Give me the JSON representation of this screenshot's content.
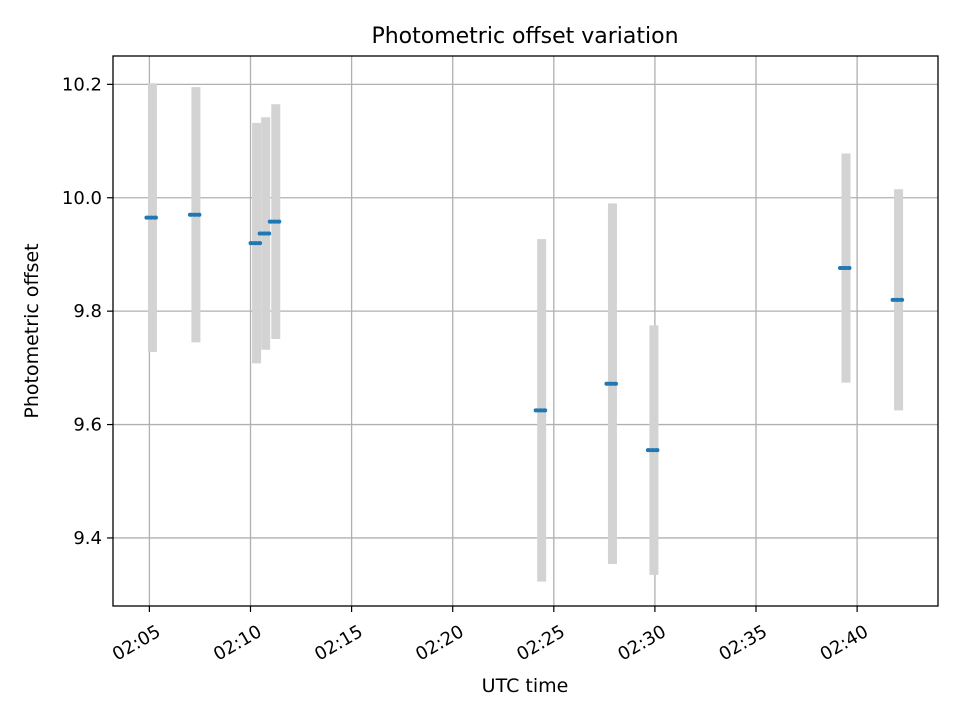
{
  "chart_data": {
    "type": "scatter",
    "title": "Photometric offset variation",
    "xlabel": "UTC time",
    "ylabel": "Photometric offset",
    "grid": true,
    "legend": "none",
    "x_unit": "minutes of hour 02 UTC",
    "xlim": [
      3.2,
      44.0
    ],
    "ylim": [
      9.28,
      10.25
    ],
    "x_ticks": [
      {
        "value": 5,
        "label": "02:05"
      },
      {
        "value": 10,
        "label": "02:10"
      },
      {
        "value": 15,
        "label": "02:15"
      },
      {
        "value": 20,
        "label": "02:20"
      },
      {
        "value": 25,
        "label": "02:25"
      },
      {
        "value": 30,
        "label": "02:30"
      },
      {
        "value": 35,
        "label": "02:35"
      },
      {
        "value": 40,
        "label": "02:40"
      }
    ],
    "y_ticks": [
      {
        "value": 9.4,
        "label": "9.4"
      },
      {
        "value": 9.6,
        "label": "9.6"
      },
      {
        "value": 9.8,
        "label": "9.8"
      },
      {
        "value": 10.0,
        "label": "10.0"
      },
      {
        "value": 10.2,
        "label": "10.2"
      }
    ],
    "colors": {
      "point": "#1f77b4",
      "errorbar": "#d3d3d3",
      "grid": "#b0b0b0"
    },
    "points": [
      {
        "x": 5.15,
        "y": 9.965,
        "yerr": 0.237
      },
      {
        "x": 7.3,
        "y": 9.97,
        "yerr": 0.225
      },
      {
        "x": 10.3,
        "y": 9.92,
        "yerr": 0.212
      },
      {
        "x": 10.75,
        "y": 9.937,
        "yerr": 0.205
      },
      {
        "x": 11.25,
        "y": 9.958,
        "yerr": 0.207
      },
      {
        "x": 24.4,
        "y": 9.625,
        "yerr": 0.302
      },
      {
        "x": 27.9,
        "y": 9.672,
        "yerr": 0.318
      },
      {
        "x": 29.95,
        "y": 9.555,
        "yerr": 0.22
      },
      {
        "x": 39.45,
        "y": 9.876,
        "yerr": 0.202
      },
      {
        "x": 42.05,
        "y": 9.82,
        "yerr": 0.195
      }
    ]
  }
}
